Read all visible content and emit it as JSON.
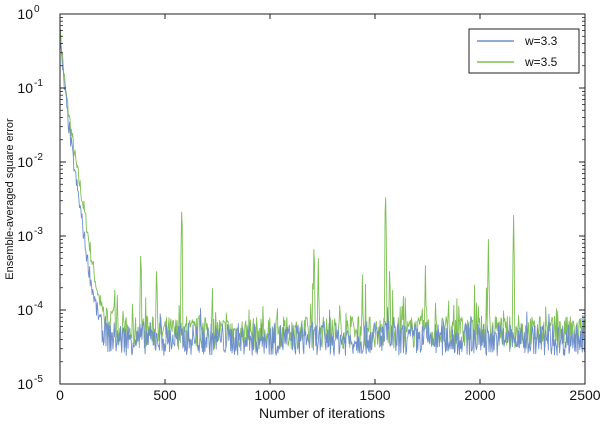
{
  "chart_data": {
    "type": "line",
    "title": "",
    "xlabel": "Number of iterations",
    "ylabel": "Ensemble-averaged square error",
    "xlim": [
      0,
      2500
    ],
    "ylim": [
      1e-05,
      1
    ],
    "yscale": "log",
    "grid": false,
    "legend_position": "top-right",
    "x_ticks": [
      "0",
      "500",
      "1000",
      "1500",
      "2000",
      "2500"
    ],
    "y_ticks": [
      {
        "base": "10",
        "exp": "0"
      },
      {
        "base": "10",
        "exp": "-1"
      },
      {
        "base": "10",
        "exp": "-2"
      },
      {
        "base": "10",
        "exp": "-3"
      },
      {
        "base": "10",
        "exp": "-4"
      },
      {
        "base": "10",
        "exp": "-5"
      }
    ],
    "series": [
      {
        "name": "w=3.3",
        "color": "#6f8fc9",
        "x": [
          0,
          10,
          25,
          50,
          75,
          100,
          125,
          150,
          175,
          200,
          225,
          250,
          300,
          400,
          500,
          600,
          800,
          1000,
          1200,
          1400,
          1550,
          1600,
          1800,
          2000,
          2200,
          2400,
          2500
        ],
        "y": [
          0.5,
          0.2,
          0.08,
          0.02,
          0.006,
          0.002,
          0.0006,
          0.00022,
          0.0001,
          6e-05,
          4.5e-05,
          4.2e-05,
          4e-05,
          4.2e-05,
          4e-05,
          4.1e-05,
          4e-05,
          4e-05,
          4.1e-05,
          4e-05,
          4.5e-05,
          4e-05,
          4e-05,
          4e-05,
          4e-05,
          4e-05,
          4e-05
        ]
      },
      {
        "name": "w=3.5",
        "color": "#7fbf56",
        "x": [
          0,
          10,
          25,
          50,
          75,
          100,
          125,
          150,
          175,
          200,
          225,
          250,
          300,
          400,
          500,
          600,
          800,
          1000,
          1200,
          1400,
          1600,
          1800,
          2000,
          2200,
          2400,
          2500
        ],
        "y": [
          0.6,
          0.3,
          0.1,
          0.03,
          0.01,
          0.004,
          0.0015,
          0.0005,
          0.0002,
          0.0001,
          7e-05,
          6e-05,
          5e-05,
          5e-05,
          5e-05,
          4.8e-05,
          5e-05,
          4.8e-05,
          5e-05,
          5e-05,
          5e-05,
          5e-05,
          5e-05,
          5e-05,
          5e-05,
          5e-05
        ]
      }
    ],
    "spikes": [
      {
        "x": 260,
        "y": 0.00028
      },
      {
        "x": 345,
        "y": 0.00012
      },
      {
        "x": 385,
        "y": 0.0008
      },
      {
        "x": 460,
        "y": 0.0005
      },
      {
        "x": 580,
        "y": 0.0032
      },
      {
        "x": 700,
        "y": 0.0001
      },
      {
        "x": 900,
        "y": 0.0001
      },
      {
        "x": 1210,
        "y": 0.001
      },
      {
        "x": 1230,
        "y": 0.0005
      },
      {
        "x": 1280,
        "y": 0.0001
      },
      {
        "x": 1440,
        "y": 0.0003
      },
      {
        "x": 1550,
        "y": 0.005
      },
      {
        "x": 1570,
        "y": 0.0005
      },
      {
        "x": 1630,
        "y": 0.00017
      },
      {
        "x": 1740,
        "y": 0.0004
      },
      {
        "x": 1850,
        "y": 0.0002
      },
      {
        "x": 1900,
        "y": 0.00017
      },
      {
        "x": 2040,
        "y": 0.0009
      },
      {
        "x": 2080,
        "y": 0.00012
      },
      {
        "x": 2160,
        "y": 0.0019
      }
    ]
  }
}
